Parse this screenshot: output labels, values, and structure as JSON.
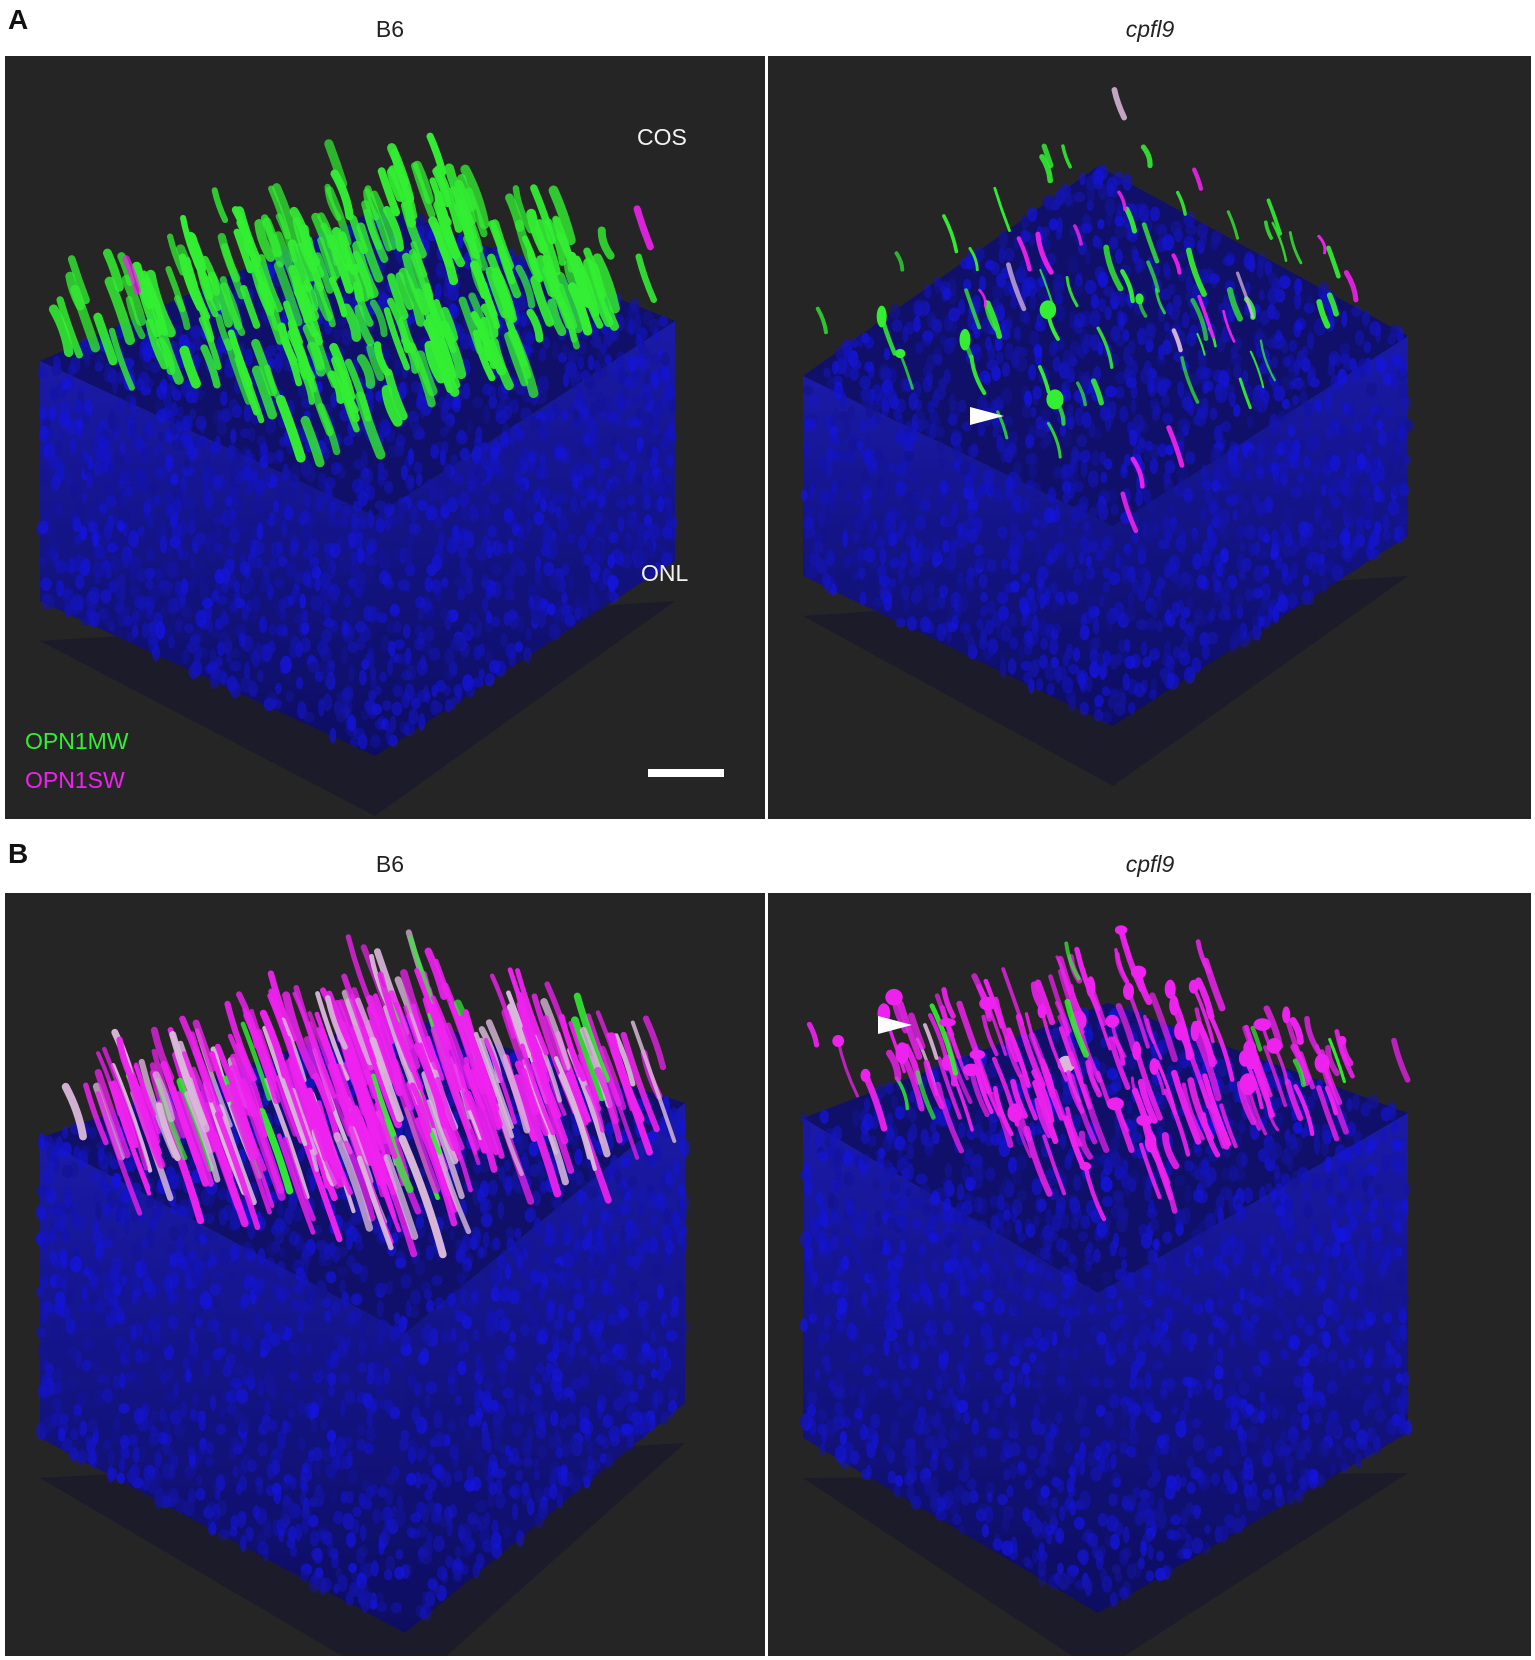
{
  "panel_a": {
    "letter": "A",
    "left_title": "B6",
    "right_title": "cpfl9",
    "label_top": "COS",
    "label_bottom": "ONL",
    "legend": [
      {
        "text": "OPN1MW",
        "color": "#33ee33"
      },
      {
        "text": "OPN1SW",
        "color": "#ee22ee"
      }
    ]
  },
  "panel_b": {
    "letter": "B",
    "left_title": "B6",
    "right_title": "cpfl9"
  },
  "colors": {
    "background": "#252525",
    "nuclei": "#1f1fc0",
    "opn1mw": "#33ee33",
    "opn1sw": "#ee22ee"
  }
}
